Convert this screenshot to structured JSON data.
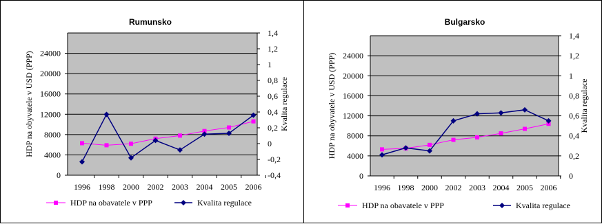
{
  "colors": {
    "plot_bg": "#c0c0c0",
    "hdp_series": "#ff00ff",
    "regulace_series": "#000080",
    "grid": "#000000"
  },
  "chart_data": [
    {
      "type": "line",
      "title": "Rumunsko",
      "categories": [
        "1996",
        "1998",
        "2000",
        "2002",
        "2003",
        "2004",
        "2005",
        "2006"
      ],
      "ylabel": "HDP na obyvatele v USD (PPP)",
      "ylabel_right": "Kvalita regulace",
      "ylim": [
        0,
        28000
      ],
      "yticks": [
        "0",
        "4000",
        "8000",
        "12000",
        "16000",
        "20000",
        "24000"
      ],
      "y2lim": [
        -0.4,
        1.4
      ],
      "y2ticks": [
        "-0,4",
        "-0,2",
        "0",
        "0,2",
        "0,4",
        "0,6",
        "0,8",
        "1",
        "1,2",
        "1,4"
      ],
      "grid": true,
      "legend_position": "bottom",
      "series": [
        {
          "name": "HDP na obavatele v PPP",
          "axis": "left",
          "marker": "square",
          "values": [
            6300,
            5900,
            6200,
            7200,
            7800,
            8700,
            9400,
            10600
          ]
        },
        {
          "name": "Kvalita regulace",
          "axis": "right",
          "marker": "diamond",
          "values": [
            -0.23,
            0.37,
            -0.18,
            0.04,
            -0.08,
            0.12,
            0.13,
            0.36
          ]
        }
      ]
    },
    {
      "type": "line",
      "title": "Bulgarsko",
      "categories": [
        "1996",
        "1998",
        "2000",
        "2002",
        "2003",
        "2004",
        "2005",
        "2006"
      ],
      "ylabel": "HDP na obyvatele v USD (PPP)",
      "ylabel_right": "Kvalita regulace",
      "ylim": [
        0,
        28000
      ],
      "yticks": [
        "0",
        "4000",
        "8000",
        "12000",
        "16000",
        "20000",
        "24000"
      ],
      "y2lim": [
        0,
        1.4
      ],
      "y2ticks": [
        "0",
        "0,2",
        "0,4",
        "0,6",
        "0,8",
        "1",
        "1,2",
        "1,4"
      ],
      "grid": true,
      "legend_position": "bottom",
      "series": [
        {
          "name": "HDP na obavatele v PPP",
          "axis": "left",
          "marker": "square",
          "values": [
            5300,
            5500,
            6200,
            7200,
            7700,
            8500,
            9400,
            10400
          ]
        },
        {
          "name": "Kvalita regulace",
          "axis": "right",
          "marker": "diamond",
          "values": [
            0.21,
            0.28,
            0.25,
            0.55,
            0.62,
            0.63,
            0.66,
            0.55
          ]
        }
      ]
    }
  ]
}
